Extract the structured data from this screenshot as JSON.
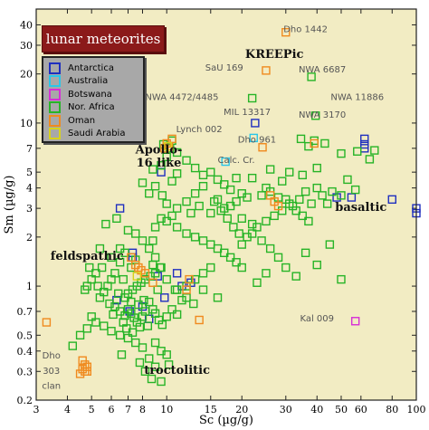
{
  "title": "lunar meteorites",
  "legend": [
    {
      "label": "Antarctica",
      "color": "#1f2fbf"
    },
    {
      "label": "Australia",
      "color": "#29c6e8"
    },
    {
      "label": "Botswana",
      "color": "#d62fd6"
    },
    {
      "label": "Nor. Africa",
      "color": "#27b427"
    },
    {
      "label": "Oman",
      "color": "#f08a1e"
    },
    {
      "label": "Saudi Arabia",
      "color": "#d8d21a"
    }
  ],
  "chart_data": {
    "type": "scatter",
    "xlabel": "Sc  (µg/g)",
    "ylabel": "Sm  (µg/g)",
    "xscale": "log",
    "yscale": "log",
    "xlim": [
      3,
      100
    ],
    "ylim": [
      0.2,
      50
    ],
    "xticks": [
      3,
      4,
      5,
      6,
      7,
      8,
      10,
      15,
      20,
      30,
      40,
      50,
      60,
      80,
      100
    ],
    "yticks": [
      0.2,
      0.3,
      0.4,
      0.5,
      0.7,
      1,
      2,
      3,
      4,
      5,
      7,
      10,
      20,
      30,
      40
    ],
    "background": "#f2ecc3",
    "region_labels": [
      {
        "text": "KREEPic",
        "x": 27,
        "y": 25
      },
      {
        "text": "Apollo-",
        "x": 9.3,
        "y": 6.5
      },
      {
        "text": "16 like",
        "x": 9.3,
        "y": 5.4
      },
      {
        "text": "basaltic",
        "x": 60,
        "y": 2.9
      },
      {
        "text": "feldspathic",
        "x": 4.8,
        "y": 1.45
      },
      {
        "text": "troctolitic",
        "x": 11,
        "y": 0.29
      }
    ],
    "point_labels": [
      {
        "text": "Dho 1442",
        "x": 36,
        "y": 36
      },
      {
        "text": "SaU 169",
        "x": 17,
        "y": 21
      },
      {
        "text": "NWA 6687",
        "x": 42,
        "y": 20.5
      },
      {
        "text": "NWA 4472/4485",
        "x": 11.5,
        "y": 13.8
      },
      {
        "text": "NWA 11886",
        "x": 58,
        "y": 13.8
      },
      {
        "text": "MIL 13317",
        "x": 21,
        "y": 11.2
      },
      {
        "text": "NWA 3170",
        "x": 42,
        "y": 10.8
      },
      {
        "text": "Lynch 002",
        "x": 13.5,
        "y": 8.8
      },
      {
        "text": "Dho 961",
        "x": 23,
        "y": 7.6
      },
      {
        "text": "Calc. Cr.",
        "x": 19,
        "y": 5.7
      },
      {
        "text": "Kal 009",
        "x": 40,
        "y": 0.61
      },
      {
        "text": "Dho",
        "x": 3.45,
        "y": 0.36
      },
      {
        "text": "303",
        "x": 3.45,
        "y": 0.29
      },
      {
        "text": "clan",
        "x": 3.45,
        "y": 0.235
      }
    ],
    "series": [
      {
        "name": "Antarctica",
        "color": "#1f2fbf",
        "points": [
          [
            22.6,
            10
          ],
          [
            62,
            8
          ],
          [
            62,
            7.4
          ],
          [
            62,
            7
          ],
          [
            80,
            3.4
          ],
          [
            100,
            3
          ],
          [
            100,
            2.8
          ],
          [
            55,
            3.5
          ],
          [
            48,
            3.5
          ],
          [
            7.3,
            1.6
          ],
          [
            7.3,
            1.5
          ],
          [
            11,
            1.2
          ],
          [
            11.5,
            1.0
          ],
          [
            12.5,
            1.05
          ],
          [
            9.8,
            0.85
          ],
          [
            6.5,
            3
          ],
          [
            9.2,
            1.15
          ],
          [
            8,
            0.75
          ],
          [
            8.5,
            0.63
          ],
          [
            7.1,
            0.7
          ],
          [
            6.3,
            0.82
          ],
          [
            9.5,
            5
          ]
        ]
      },
      {
        "name": "Australia",
        "color": "#29c6e8",
        "points": [
          [
            22.3,
            8.1
          ],
          [
            17.2,
            5.8
          ]
        ]
      },
      {
        "name": "Botswana",
        "color": "#d62fd6",
        "points": [
          [
            57,
            0.61
          ]
        ]
      },
      {
        "name": "Nor. Africa",
        "color": "#27b427",
        "points": [
          [
            22,
            14.2
          ],
          [
            38,
            19.2
          ],
          [
            39.5,
            11.1
          ],
          [
            34.5,
            8
          ],
          [
            37,
            7.2
          ],
          [
            39,
            7.8
          ],
          [
            43,
            7.5
          ],
          [
            50,
            6.5
          ],
          [
            58,
            6.7
          ],
          [
            65,
            6
          ],
          [
            68,
            6.8
          ],
          [
            40,
            5.3
          ],
          [
            35,
            4.8
          ],
          [
            31,
            5
          ],
          [
            29,
            4.4
          ],
          [
            26,
            5.2
          ],
          [
            25,
            4
          ],
          [
            22,
            4.6
          ],
          [
            24,
            3.6
          ],
          [
            26,
            3.8
          ],
          [
            28,
            3.5
          ],
          [
            30,
            3.4
          ],
          [
            32,
            3.1
          ],
          [
            34,
            3.4
          ],
          [
            36,
            3.8
          ],
          [
            38,
            3.2
          ],
          [
            40,
            4
          ],
          [
            42,
            3.6
          ],
          [
            44,
            3.2
          ],
          [
            46,
            3.8
          ],
          [
            50,
            3.6
          ],
          [
            53,
            4.5
          ],
          [
            57,
            3.9
          ],
          [
            20,
            3.7
          ],
          [
            21,
            3.5
          ],
          [
            19,
            3.3
          ],
          [
            18,
            3.1
          ],
          [
            17,
            3
          ],
          [
            16,
            3.4
          ],
          [
            15,
            2.8
          ],
          [
            20,
            2.6
          ],
          [
            22,
            2.4
          ],
          [
            23,
            2.3
          ],
          [
            25,
            2.5
          ],
          [
            27,
            2.7
          ],
          [
            29,
            2.9
          ],
          [
            31,
            3.2
          ],
          [
            33,
            2.9
          ],
          [
            35,
            2.7
          ],
          [
            37,
            2.5
          ],
          [
            22,
            2.1
          ],
          [
            21,
            2
          ],
          [
            20,
            1.8
          ],
          [
            24,
            1.9
          ],
          [
            26,
            1.7
          ],
          [
            28,
            1.5
          ],
          [
            30,
            1.3
          ],
          [
            25,
            1.2
          ],
          [
            23,
            1.05
          ],
          [
            33,
            1.15
          ],
          [
            36,
            1.6
          ],
          [
            40,
            1.35
          ],
          [
            45,
            1.8
          ],
          [
            50,
            1.1
          ],
          [
            14,
            4.1
          ],
          [
            13,
            3.7
          ],
          [
            12,
            3.3
          ],
          [
            11,
            3.0
          ],
          [
            10.5,
            2.7
          ],
          [
            10,
            2.5
          ],
          [
            11,
            2.3
          ],
          [
            12,
            2.1
          ],
          [
            13,
            2
          ],
          [
            14,
            1.9
          ],
          [
            15,
            1.8
          ],
          [
            16,
            1.7
          ],
          [
            17,
            1.6
          ],
          [
            18,
            1.5
          ],
          [
            19,
            1.4
          ],
          [
            20,
            1.3
          ],
          [
            15,
            1.3
          ],
          [
            14,
            1.2
          ],
          [
            13,
            1.1
          ],
          [
            12,
            1
          ],
          [
            14,
            0.95
          ],
          [
            16,
            0.85
          ],
          [
            12,
            0.85
          ],
          [
            11,
            0.95
          ],
          [
            10,
            1.1
          ],
          [
            9.5,
            1.3
          ],
          [
            9,
            1.5
          ],
          [
            8.5,
            1.7
          ],
          [
            8,
            1.9
          ],
          [
            7.5,
            2.1
          ],
          [
            7,
            2.2
          ],
          [
            6.8,
            1.6
          ],
          [
            6.5,
            1.4
          ],
          [
            6.2,
            1.2
          ],
          [
            6,
            1.1
          ],
          [
            5.8,
            1.0
          ],
          [
            5.6,
            0.92
          ],
          [
            5.4,
            0.85
          ],
          [
            5.2,
            1.2
          ],
          [
            5.0,
            1.1
          ],
          [
            4.8,
            1.0
          ],
          [
            4.7,
            0.95
          ],
          [
            5.5,
            1.3
          ],
          [
            6.0,
            1.5
          ],
          [
            6.5,
            1.7
          ],
          [
            6.2,
            0.75
          ],
          [
            6.5,
            0.7
          ],
          [
            6.8,
            0.66
          ],
          [
            7.0,
            0.72
          ],
          [
            7.2,
            0.68
          ],
          [
            7.4,
            0.64
          ],
          [
            7.6,
            0.6
          ],
          [
            7.8,
            0.56
          ],
          [
            8.0,
            0.65
          ],
          [
            8.2,
            0.7
          ],
          [
            8.5,
            0.8
          ],
          [
            8.8,
            0.72
          ],
          [
            9.0,
            0.68
          ],
          [
            9.3,
            0.62
          ],
          [
            9.6,
            0.58
          ],
          [
            10,
            0.65
          ],
          [
            10.5,
            0.72
          ],
          [
            11,
            0.67
          ],
          [
            7.0,
            0.9
          ],
          [
            7.3,
            0.95
          ],
          [
            7.6,
            1.0
          ],
          [
            7.9,
            1.05
          ],
          [
            8.2,
            1.1
          ],
          [
            8.6,
            1.15
          ],
          [
            9.0,
            1.2
          ],
          [
            9.4,
            1.3
          ],
          [
            6.4,
            0.9
          ],
          [
            6.8,
            0.85
          ],
          [
            7.2,
            0.8
          ],
          [
            7.7,
            0.77
          ],
          [
            8.1,
            0.82
          ],
          [
            5.2,
            0.6
          ],
          [
            5.6,
            0.57
          ],
          [
            6.0,
            0.53
          ],
          [
            4.8,
            0.55
          ],
          [
            5.0,
            0.65
          ],
          [
            4.5,
            0.5
          ],
          [
            4.2,
            0.43
          ],
          [
            6.5,
            0.5
          ],
          [
            7.0,
            0.48
          ],
          [
            7.5,
            0.45
          ],
          [
            8.0,
            0.42
          ],
          [
            9.0,
            0.45
          ],
          [
            9.5,
            0.4
          ],
          [
            10,
            0.38
          ],
          [
            8.5,
            0.36
          ],
          [
            7.8,
            0.34
          ],
          [
            8.2,
            0.3
          ],
          [
            9.0,
            0.32
          ],
          [
            10.2,
            0.33
          ],
          [
            8.7,
            0.27
          ],
          [
            9.5,
            0.26
          ],
          [
            6.6,
            0.38
          ],
          [
            8.8,
            1.9
          ],
          [
            9.0,
            2.3
          ],
          [
            9.5,
            2.6
          ],
          [
            10.0,
            3.2
          ],
          [
            9.6,
            3.6
          ],
          [
            10.5,
            4.4
          ],
          [
            11,
            4.9
          ],
          [
            9.0,
            4.1
          ],
          [
            8.5,
            3.7
          ],
          [
            8.0,
            4.3
          ],
          [
            8.8,
            5.2
          ],
          [
            9.5,
            5.5
          ],
          [
            10.0,
            6.2
          ],
          [
            10.3,
            7
          ],
          [
            9.7,
            7.4
          ],
          [
            10.5,
            7.8
          ],
          [
            11.0,
            6.6
          ],
          [
            12.0,
            5.9
          ],
          [
            13.0,
            5.3
          ],
          [
            14.0,
            4.8
          ],
          [
            15,
            5.0
          ],
          [
            16,
            4.5
          ],
          [
            17,
            4.2
          ],
          [
            18,
            3.9
          ],
          [
            19,
            4.6
          ],
          [
            12.5,
            2.8
          ],
          [
            13.5,
            3.1
          ],
          [
            15.5,
            3.3
          ],
          [
            16.5,
            2.9
          ],
          [
            17.5,
            2.6
          ],
          [
            18.5,
            2.3
          ],
          [
            19.5,
            2.1
          ],
          [
            5.7,
            2.4
          ],
          [
            6.3,
            2.6
          ],
          [
            5.4,
            1.7
          ],
          [
            4.9,
            1.3
          ],
          [
            5.3,
            1.0
          ],
          [
            6.7,
            1.1
          ],
          [
            7.2,
            1.3
          ],
          [
            7.5,
            1.45
          ],
          [
            8.8,
            1.35
          ],
          [
            9.2,
            0.95
          ],
          [
            10.8,
            0.95
          ],
          [
            11.5,
            0.82
          ],
          [
            12.8,
            0.78
          ],
          [
            5.9,
            0.78
          ],
          [
            6.1,
            0.67
          ],
          [
            6.7,
            0.6
          ],
          [
            6.9,
            0.55
          ],
          [
            7.3,
            0.52
          ],
          [
            8.4,
            0.57
          ]
        ]
      },
      {
        "name": "Oman",
        "color": "#f08a1e",
        "points": [
          [
            30,
            36
          ],
          [
            25,
            21
          ],
          [
            24.2,
            7.1
          ],
          [
            26,
            3.6
          ],
          [
            27,
            3.3
          ],
          [
            28,
            3.1
          ],
          [
            10,
            7.5
          ],
          [
            10.2,
            7.2
          ],
          [
            9.8,
            7.0
          ],
          [
            10.5,
            8.0
          ],
          [
            7.5,
            1.35
          ],
          [
            7.7,
            1.3
          ],
          [
            7.9,
            1.25
          ],
          [
            8.2,
            1.2
          ],
          [
            12.3,
            1.1
          ],
          [
            12.0,
            0.95
          ],
          [
            8.8,
            1.05
          ],
          [
            3.3,
            0.6
          ],
          [
            4.6,
            0.35
          ],
          [
            4.7,
            0.33
          ],
          [
            4.8,
            0.32
          ],
          [
            4.6,
            0.31
          ],
          [
            4.7,
            0.3
          ],
          [
            4.5,
            0.29
          ],
          [
            4.8,
            0.3
          ],
          [
            39,
            7.5
          ],
          [
            13.5,
            0.62
          ],
          [
            7.2,
            1.5
          ]
        ]
      },
      {
        "name": "Saudi Arabia",
        "color": "#d8d21a",
        "points": [
          [
            7.6,
            1.15
          ],
          [
            10.1,
            7.2
          ]
        ]
      }
    ]
  }
}
